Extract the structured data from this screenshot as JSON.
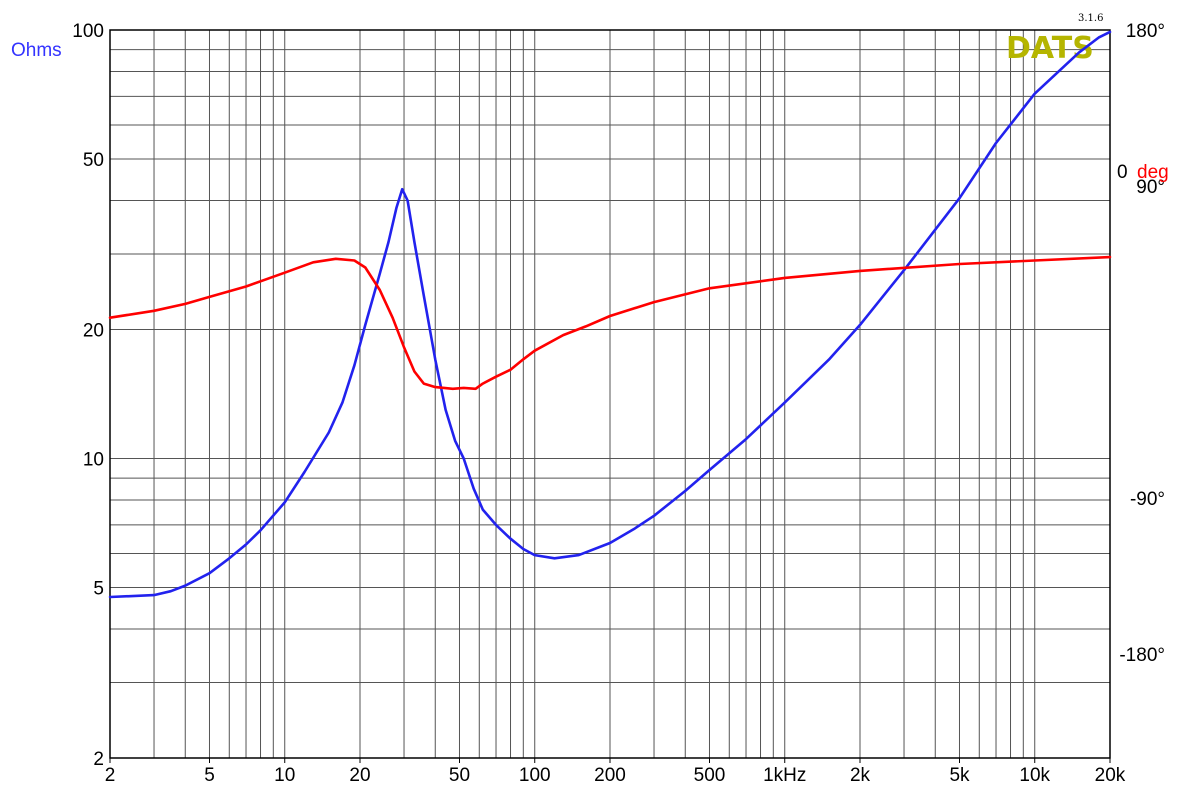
{
  "brand": {
    "name": "DATS",
    "version": "3.1.6"
  },
  "chart_data": {
    "type": "line",
    "xscale": "log",
    "yscale": "log",
    "xlim": [
      2,
      20000
    ],
    "ylim": [
      2,
      100
    ],
    "right_ylim": [
      -240,
      180
    ],
    "grid": true,
    "ylabel": "Ohms",
    "right_ylabel_parts": [
      "0",
      "deg"
    ],
    "x_ticks": [
      {
        "value": 2,
        "label": "2"
      },
      {
        "value": 5,
        "label": "5"
      },
      {
        "value": 10,
        "label": "10"
      },
      {
        "value": 20,
        "label": "20"
      },
      {
        "value": 50,
        "label": "50"
      },
      {
        "value": 100,
        "label": "100"
      },
      {
        "value": 200,
        "label": "200"
      },
      {
        "value": 500,
        "label": "500"
      },
      {
        "value": 1000,
        "label": "1kHz"
      },
      {
        "value": 2000,
        "label": "2k"
      },
      {
        "value": 5000,
        "label": "5k"
      },
      {
        "value": 10000,
        "label": "10k"
      },
      {
        "value": 20000,
        "label": "20k"
      }
    ],
    "y_ticks": [
      {
        "value": 100,
        "label": "100"
      },
      {
        "value": 50,
        "label": "50"
      },
      {
        "value": 20,
        "label": "20"
      },
      {
        "value": 10,
        "label": "10"
      },
      {
        "value": 5,
        "label": "5"
      },
      {
        "value": 2,
        "label": "2"
      }
    ],
    "right_ticks": [
      {
        "value": 180,
        "label": "180°"
      },
      {
        "value": 90,
        "label": "90°"
      },
      {
        "value": -90,
        "label": "-90°"
      },
      {
        "value": -180,
        "label": "-180°"
      }
    ],
    "series": [
      {
        "name": "Ohms",
        "axis": "left",
        "color": "#2222ee",
        "points": [
          [
            2,
            4.75
          ],
          [
            3,
            4.8
          ],
          [
            3.5,
            4.9
          ],
          [
            4,
            5.05
          ],
          [
            5,
            5.4
          ],
          [
            6,
            5.85
          ],
          [
            7,
            6.3
          ],
          [
            8,
            6.8
          ],
          [
            10,
            7.9
          ],
          [
            12,
            9.3
          ],
          [
            15,
            11.5
          ],
          [
            17,
            13.5
          ],
          [
            19,
            16.5
          ],
          [
            21,
            20.5
          ],
          [
            24,
            27
          ],
          [
            26,
            32
          ],
          [
            28,
            38.5
          ],
          [
            29.5,
            42.5
          ],
          [
            31,
            40
          ],
          [
            33,
            32
          ],
          [
            36,
            24
          ],
          [
            40,
            17
          ],
          [
            44,
            13
          ],
          [
            48,
            11
          ],
          [
            52,
            10
          ],
          [
            57,
            8.5
          ],
          [
            62,
            7.6
          ],
          [
            70,
            7.0
          ],
          [
            80,
            6.5
          ],
          [
            90,
            6.15
          ],
          [
            100,
            5.95
          ],
          [
            120,
            5.85
          ],
          [
            150,
            5.95
          ],
          [
            200,
            6.35
          ],
          [
            250,
            6.85
          ],
          [
            300,
            7.35
          ],
          [
            400,
            8.4
          ],
          [
            500,
            9.4
          ],
          [
            700,
            11.1
          ],
          [
            1000,
            13.5
          ],
          [
            1500,
            17.0
          ],
          [
            2000,
            20.5
          ],
          [
            3000,
            27.5
          ],
          [
            5000,
            40.5
          ],
          [
            7000,
            54.5
          ],
          [
            10000,
            71
          ],
          [
            15000,
            88.5
          ],
          [
            18000,
            96
          ],
          [
            20000,
            99
          ]
        ]
      },
      {
        "name": "deg",
        "axis": "right",
        "color": "#ff0000",
        "points": [
          [
            2,
            14
          ],
          [
            3,
            18
          ],
          [
            4,
            22
          ],
          [
            5,
            26
          ],
          [
            7,
            32
          ],
          [
            10,
            40
          ],
          [
            13,
            46
          ],
          [
            16,
            48
          ],
          [
            19,
            47
          ],
          [
            21,
            43
          ],
          [
            24,
            30
          ],
          [
            27,
            14
          ],
          [
            30,
            -3
          ],
          [
            33,
            -17
          ],
          [
            36,
            -24
          ],
          [
            40,
            -26
          ],
          [
            47,
            -27
          ],
          [
            52,
            -26.5
          ],
          [
            58,
            -27
          ],
          [
            62,
            -24
          ],
          [
            70,
            -20
          ],
          [
            80,
            -16
          ],
          [
            90,
            -10
          ],
          [
            100,
            -5
          ],
          [
            130,
            4
          ],
          [
            160,
            9
          ],
          [
            200,
            15
          ],
          [
            300,
            23
          ],
          [
            500,
            31
          ],
          [
            1000,
            37
          ],
          [
            2000,
            41
          ],
          [
            5000,
            45
          ],
          [
            10000,
            47
          ],
          [
            20000,
            49
          ]
        ]
      }
    ]
  }
}
